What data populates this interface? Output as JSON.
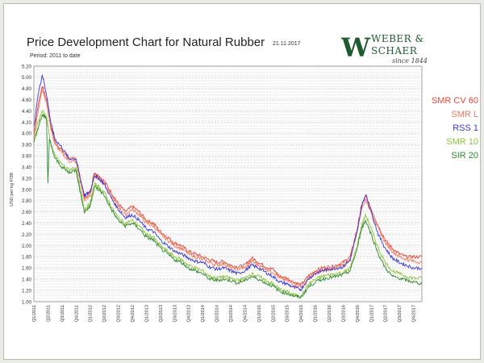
{
  "header": {
    "title": "Price Development Chart for Natural Rubber",
    "date": "21.11.2017",
    "period": "Period: 2011 to date"
  },
  "logo": {
    "monogram": "W",
    "name_line1": "WEBER &",
    "name_line2": "SCHAER",
    "since": "since 1844"
  },
  "colors": {
    "SMR CV 60": "#e8473a",
    "SMR L": "#f07a5e",
    "RSS 1": "#3a3ad6",
    "SMR 10": "#8ec23a",
    "SIR 20": "#2e8b2e"
  },
  "chart_data": {
    "type": "line",
    "ylabel": "USD per kg FOB",
    "ylim": [
      1.0,
      5.2
    ],
    "yticks": [
      "1.00",
      "1.20",
      "1.40",
      "1.60",
      "1.80",
      "2.00",
      "2.20",
      "2.40",
      "2.60",
      "2.80",
      "3.00",
      "3.20",
      "3.40",
      "3.60",
      "3.80",
      "4.00",
      "4.20",
      "4.40",
      "4.60",
      "4.80",
      "5.00",
      "5.20"
    ],
    "xticks": [
      "Q1/2011",
      "Q2/2011",
      "Q3/2011",
      "Q4/2011",
      "Q1/2012",
      "Q2/2012",
      "Q3/2012",
      "Q4/2012",
      "Q1/2013",
      "Q2/2013",
      "Q3/2013",
      "Q4/2013",
      "Q1/2014",
      "Q2/2014",
      "Q3/2014",
      "Q4/2014",
      "Q1/2015",
      "Q2/2015",
      "Q3/2015",
      "Q4/2015",
      "Q1/2016",
      "Q2/2016",
      "Q3/2016",
      "Q4/2016",
      "Q1/2017",
      "Q2/2017",
      "Q3/2017",
      "Q4/2017"
    ],
    "x_range_quarters": [
      0,
      27.6
    ],
    "grid": true,
    "legend_placement": "right",
    "series": [
      {
        "name": "SMR CV 60",
        "points": [
          [
            0,
            4.0
          ],
          [
            0.3,
            4.5
          ],
          [
            0.6,
            4.85
          ],
          [
            0.9,
            4.6
          ],
          [
            1.2,
            4.15
          ],
          [
            1.5,
            3.85
          ],
          [
            2,
            3.7
          ],
          [
            2.5,
            3.55
          ],
          [
            3,
            3.55
          ],
          [
            3.3,
            3.2
          ],
          [
            3.6,
            2.85
          ],
          [
            4,
            2.95
          ],
          [
            4.3,
            3.3
          ],
          [
            4.6,
            3.25
          ],
          [
            5,
            3.15
          ],
          [
            5.5,
            2.95
          ],
          [
            6,
            2.75
          ],
          [
            6.5,
            2.6
          ],
          [
            7,
            2.7
          ],
          [
            7.5,
            2.6
          ],
          [
            8,
            2.45
          ],
          [
            8.5,
            2.4
          ],
          [
            9,
            2.25
          ],
          [
            9.5,
            2.15
          ],
          [
            10,
            2.05
          ],
          [
            10.5,
            2.0
          ],
          [
            11,
            1.9
          ],
          [
            11.5,
            1.85
          ],
          [
            12,
            1.8
          ],
          [
            12.5,
            1.75
          ],
          [
            13,
            1.7
          ],
          [
            13.5,
            1.72
          ],
          [
            14,
            1.65
          ],
          [
            14.5,
            1.62
          ],
          [
            15,
            1.65
          ],
          [
            15.5,
            1.78
          ],
          [
            16,
            1.7
          ],
          [
            16.5,
            1.62
          ],
          [
            17,
            1.58
          ],
          [
            17.5,
            1.45
          ],
          [
            18,
            1.42
          ],
          [
            18.5,
            1.35
          ],
          [
            19,
            1.3
          ],
          [
            19.5,
            1.45
          ],
          [
            20,
            1.55
          ],
          [
            20.5,
            1.6
          ],
          [
            21,
            1.62
          ],
          [
            21.5,
            1.65
          ],
          [
            22,
            1.7
          ],
          [
            22.5,
            1.8
          ],
          [
            23,
            2.3
          ],
          [
            23.3,
            2.7
          ],
          [
            23.6,
            2.88
          ],
          [
            24,
            2.65
          ],
          [
            24.5,
            2.35
          ],
          [
            25,
            2.1
          ],
          [
            25.5,
            1.95
          ],
          [
            26,
            1.85
          ],
          [
            26.5,
            1.8
          ],
          [
            27,
            1.8
          ],
          [
            27.6,
            1.8
          ]
        ]
      },
      {
        "name": "SMR L",
        "points": [
          [
            0,
            3.95
          ],
          [
            0.3,
            4.4
          ],
          [
            0.6,
            4.8
          ],
          [
            0.9,
            4.55
          ],
          [
            1.2,
            4.1
          ],
          [
            1.5,
            3.8
          ],
          [
            2,
            3.65
          ],
          [
            2.5,
            3.5
          ],
          [
            3,
            3.5
          ],
          [
            3.3,
            3.15
          ],
          [
            3.6,
            2.8
          ],
          [
            4,
            2.9
          ],
          [
            4.3,
            3.25
          ],
          [
            4.6,
            3.2
          ],
          [
            5,
            3.1
          ],
          [
            5.5,
            2.9
          ],
          [
            6,
            2.7
          ],
          [
            6.5,
            2.55
          ],
          [
            7,
            2.65
          ],
          [
            7.5,
            2.55
          ],
          [
            8,
            2.4
          ],
          [
            8.5,
            2.35
          ],
          [
            9,
            2.2
          ],
          [
            9.5,
            2.1
          ],
          [
            10,
            2.0
          ],
          [
            10.5,
            1.95
          ],
          [
            11,
            1.85
          ],
          [
            11.5,
            1.8
          ],
          [
            12,
            1.75
          ],
          [
            12.5,
            1.7
          ],
          [
            13,
            1.65
          ],
          [
            13.5,
            1.68
          ],
          [
            14,
            1.6
          ],
          [
            14.5,
            1.58
          ],
          [
            15,
            1.6
          ],
          [
            15.5,
            1.72
          ],
          [
            16,
            1.65
          ],
          [
            16.5,
            1.58
          ],
          [
            17,
            1.53
          ],
          [
            17.5,
            1.42
          ],
          [
            18,
            1.38
          ],
          [
            18.5,
            1.3
          ],
          [
            19,
            1.27
          ],
          [
            19.5,
            1.4
          ],
          [
            20,
            1.5
          ],
          [
            20.5,
            1.55
          ],
          [
            21,
            1.58
          ],
          [
            21.5,
            1.6
          ],
          [
            22,
            1.65
          ],
          [
            22.5,
            1.75
          ],
          [
            23,
            2.25
          ],
          [
            23.3,
            2.65
          ],
          [
            23.6,
            2.82
          ],
          [
            24,
            2.6
          ],
          [
            24.5,
            2.3
          ],
          [
            25,
            2.05
          ],
          [
            25.5,
            1.9
          ],
          [
            26,
            1.8
          ],
          [
            26.5,
            1.75
          ],
          [
            27,
            1.72
          ],
          [
            27.6,
            1.7
          ]
        ]
      },
      {
        "name": "RSS 1",
        "points": [
          [
            0,
            4.1
          ],
          [
            0.3,
            4.7
          ],
          [
            0.6,
            5.05
          ],
          [
            0.9,
            4.7
          ],
          [
            1.2,
            4.2
          ],
          [
            1.5,
            3.9
          ],
          [
            2,
            3.75
          ],
          [
            2.5,
            3.55
          ],
          [
            3,
            3.55
          ],
          [
            3.3,
            3.2
          ],
          [
            3.6,
            2.9
          ],
          [
            4,
            2.95
          ],
          [
            4.3,
            3.25
          ],
          [
            4.6,
            3.2
          ],
          [
            5,
            3.1
          ],
          [
            5.5,
            2.85
          ],
          [
            6,
            2.65
          ],
          [
            6.5,
            2.5
          ],
          [
            7,
            2.55
          ],
          [
            7.5,
            2.45
          ],
          [
            8,
            2.3
          ],
          [
            8.5,
            2.25
          ],
          [
            9,
            2.1
          ],
          [
            9.5,
            2.0
          ],
          [
            10,
            1.9
          ],
          [
            10.5,
            1.85
          ],
          [
            11,
            1.78
          ],
          [
            11.5,
            1.72
          ],
          [
            12,
            1.7
          ],
          [
            12.5,
            1.62
          ],
          [
            13,
            1.58
          ],
          [
            13.5,
            1.6
          ],
          [
            14,
            1.55
          ],
          [
            14.5,
            1.5
          ],
          [
            15,
            1.55
          ],
          [
            15.5,
            1.65
          ],
          [
            16,
            1.6
          ],
          [
            16.5,
            1.52
          ],
          [
            17,
            1.45
          ],
          [
            17.5,
            1.35
          ],
          [
            18,
            1.32
          ],
          [
            18.5,
            1.25
          ],
          [
            19,
            1.22
          ],
          [
            19.5,
            1.4
          ],
          [
            20,
            1.5
          ],
          [
            20.5,
            1.55
          ],
          [
            21,
            1.58
          ],
          [
            21.5,
            1.6
          ],
          [
            22,
            1.62
          ],
          [
            22.5,
            1.75
          ],
          [
            23,
            2.25
          ],
          [
            23.3,
            2.7
          ],
          [
            23.6,
            2.92
          ],
          [
            24,
            2.6
          ],
          [
            24.5,
            2.2
          ],
          [
            25,
            1.95
          ],
          [
            25.5,
            1.78
          ],
          [
            26,
            1.7
          ],
          [
            26.5,
            1.65
          ],
          [
            27,
            1.6
          ],
          [
            27.6,
            1.6
          ]
        ]
      },
      {
        "name": "SMR 10",
        "points": [
          [
            0,
            3.9
          ],
          [
            0.3,
            4.2
          ],
          [
            0.6,
            4.4
          ],
          [
            0.9,
            4.3
          ],
          [
            1.2,
            3.8
          ],
          [
            1.5,
            3.6
          ],
          [
            2,
            3.45
          ],
          [
            2.5,
            3.35
          ],
          [
            3,
            3.4
          ],
          [
            3.3,
            3.0
          ],
          [
            3.6,
            2.65
          ],
          [
            4,
            2.75
          ],
          [
            4.3,
            3.1
          ],
          [
            4.6,
            3.05
          ],
          [
            5,
            2.95
          ],
          [
            5.5,
            2.7
          ],
          [
            6,
            2.5
          ],
          [
            6.5,
            2.4
          ],
          [
            7,
            2.45
          ],
          [
            7.5,
            2.35
          ],
          [
            8,
            2.2
          ],
          [
            8.5,
            2.15
          ],
          [
            9,
            2.0
          ],
          [
            9.5,
            1.9
          ],
          [
            10,
            1.8
          ],
          [
            10.5,
            1.75
          ],
          [
            11,
            1.65
          ],
          [
            11.5,
            1.6
          ],
          [
            12,
            1.55
          ],
          [
            12.5,
            1.45
          ],
          [
            13,
            1.42
          ],
          [
            13.5,
            1.45
          ],
          [
            14,
            1.42
          ],
          [
            14.5,
            1.38
          ],
          [
            15,
            1.42
          ],
          [
            15.5,
            1.5
          ],
          [
            16,
            1.45
          ],
          [
            16.5,
            1.38
          ],
          [
            17,
            1.32
          ],
          [
            17.5,
            1.22
          ],
          [
            18,
            1.18
          ],
          [
            18.5,
            1.12
          ],
          [
            19,
            1.1
          ],
          [
            19.5,
            1.3
          ],
          [
            20,
            1.4
          ],
          [
            20.5,
            1.45
          ],
          [
            21,
            1.48
          ],
          [
            21.5,
            1.5
          ],
          [
            22,
            1.52
          ],
          [
            22.5,
            1.6
          ],
          [
            23,
            2.0
          ],
          [
            23.3,
            2.35
          ],
          [
            23.6,
            2.55
          ],
          [
            24,
            2.3
          ],
          [
            24.5,
            1.95
          ],
          [
            25,
            1.7
          ],
          [
            25.5,
            1.55
          ],
          [
            26,
            1.5
          ],
          [
            26.5,
            1.45
          ],
          [
            27,
            1.42
          ],
          [
            27.6,
            1.42
          ]
        ]
      },
      {
        "name": "SIR 20",
        "points": [
          [
            0,
            3.85
          ],
          [
            0.3,
            4.1
          ],
          [
            0.6,
            4.35
          ],
          [
            0.9,
            4.25
          ],
          [
            1.0,
            3.1
          ],
          [
            1.1,
            3.9
          ],
          [
            1.5,
            3.55
          ],
          [
            2,
            3.4
          ],
          [
            2.5,
            3.3
          ],
          [
            3,
            3.35
          ],
          [
            3.3,
            2.95
          ],
          [
            3.6,
            2.6
          ],
          [
            4,
            2.7
          ],
          [
            4.3,
            3.05
          ],
          [
            4.6,
            3.0
          ],
          [
            5,
            2.9
          ],
          [
            5.5,
            2.65
          ],
          [
            6,
            2.45
          ],
          [
            6.5,
            2.35
          ],
          [
            7,
            2.4
          ],
          [
            7.5,
            2.3
          ],
          [
            8,
            2.15
          ],
          [
            8.5,
            2.1
          ],
          [
            9,
            1.95
          ],
          [
            9.5,
            1.85
          ],
          [
            10,
            1.75
          ],
          [
            10.5,
            1.7
          ],
          [
            11,
            1.6
          ],
          [
            11.5,
            1.55
          ],
          [
            12,
            1.5
          ],
          [
            12.5,
            1.4
          ],
          [
            13,
            1.38
          ],
          [
            13.5,
            1.4
          ],
          [
            14,
            1.38
          ],
          [
            14.5,
            1.33
          ],
          [
            15,
            1.38
          ],
          [
            15.5,
            1.45
          ],
          [
            16,
            1.4
          ],
          [
            16.5,
            1.33
          ],
          [
            17,
            1.28
          ],
          [
            17.5,
            1.18
          ],
          [
            18,
            1.15
          ],
          [
            18.5,
            1.1
          ],
          [
            19,
            1.08
          ],
          [
            19.5,
            1.25
          ],
          [
            20,
            1.35
          ],
          [
            20.5,
            1.4
          ],
          [
            21,
            1.43
          ],
          [
            21.5,
            1.45
          ],
          [
            22,
            1.48
          ],
          [
            22.5,
            1.55
          ],
          [
            23,
            1.95
          ],
          [
            23.3,
            2.3
          ],
          [
            23.6,
            2.45
          ],
          [
            24,
            2.2
          ],
          [
            24.5,
            1.85
          ],
          [
            25,
            1.6
          ],
          [
            25.5,
            1.45
          ],
          [
            26,
            1.42
          ],
          [
            26.5,
            1.38
          ],
          [
            27,
            1.35
          ],
          [
            27.6,
            1.32
          ]
        ]
      }
    ]
  }
}
